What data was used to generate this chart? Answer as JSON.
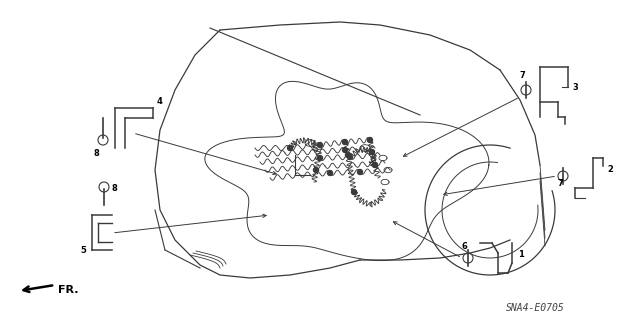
{
  "bg_color": "#ffffff",
  "lc": "#3a3a3a",
  "fig_width": 6.4,
  "fig_height": 3.19,
  "dpi": 100,
  "watermark": "SNA4-E0705",
  "fr_label": "FR."
}
